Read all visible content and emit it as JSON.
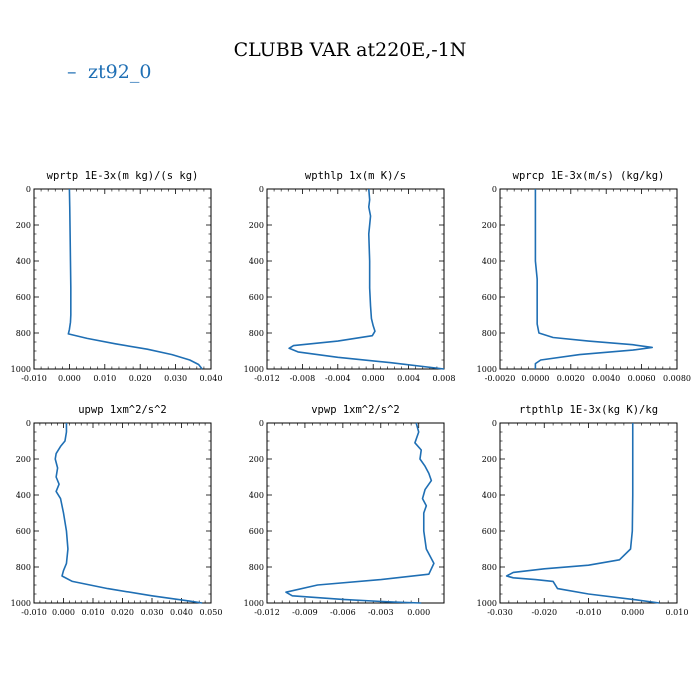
{
  "figure": {
    "title": "CLUBB VAR at220E,-1N",
    "legend": [
      {
        "name": "zt92_0",
        "color": "#1f6fb4"
      }
    ]
  },
  "chart_data": [
    {
      "type": "line",
      "title": "wprtp  1E-3x(m kg)/(s kg)",
      "xlim": [
        -0.01,
        0.04
      ],
      "ylim": [
        1000,
        0
      ],
      "xticks": [
        "-0.010",
        "0.000",
        "0.010",
        "0.020",
        "0.030",
        "0.040"
      ],
      "yticks": [
        "0",
        "200",
        "400",
        "600",
        "800",
        "1000"
      ],
      "series": [
        {
          "name": "zt92_0",
          "color": "#1f6fb4",
          "x": [
            0.0,
            0.0001,
            0.0002,
            0.0003,
            0.0004,
            0.0004,
            0.0004,
            0.0003,
            0.0,
            -0.0003,
            0.005,
            0.013,
            0.022,
            0.029,
            0.034,
            0.0365,
            0.0375
          ],
          "y": [
            0,
            100,
            250,
            400,
            550,
            650,
            700,
            740,
            780,
            805,
            830,
            860,
            890,
            920,
            950,
            975,
            1000
          ]
        }
      ]
    },
    {
      "type": "line",
      "title": "wpthlp  1x(m K)/s",
      "xlim": [
        -0.012,
        0.008
      ],
      "ylim": [
        1000,
        0
      ],
      "xticks": [
        "-0.012",
        "-0.008",
        "-0.004",
        "0.000",
        "0.004",
        "0.008"
      ],
      "yticks": [
        "0",
        "200",
        "400",
        "600",
        "800",
        "1000"
      ],
      "series": [
        {
          "name": "zt92_0",
          "color": "#1f6fb4",
          "x": [
            -0.0005,
            -0.0004,
            -0.0005,
            -0.0003,
            -0.0005,
            -0.0004,
            -0.0004,
            -0.0003,
            -0.0002,
            0.0,
            0.0002,
            -0.0001,
            -0.004,
            -0.009,
            -0.0095,
            -0.0085,
            -0.004,
            0.002,
            0.008
          ],
          "y": [
            0,
            60,
            100,
            150,
            250,
            400,
            550,
            650,
            720,
            760,
            790,
            815,
            845,
            870,
            885,
            905,
            935,
            965,
            1000
          ]
        }
      ]
    },
    {
      "type": "line",
      "title": "wprcp  1E-3x(m/s) (kg/kg)",
      "xlim": [
        -0.002,
        0.008
      ],
      "ylim": [
        1000,
        0
      ],
      "xticks": [
        "-0.0020",
        "0.0000",
        "0.0020",
        "0.0040",
        "0.0060",
        "0.0080"
      ],
      "yticks": [
        "0",
        "200",
        "400",
        "600",
        "800",
        "1000"
      ],
      "series": [
        {
          "name": "zt92_0",
          "color": "#1f6fb4",
          "x": [
            0.0,
            0.0,
            0.0,
            0.0001,
            0.0001,
            0.0001,
            0.0001,
            0.0002,
            0.001,
            0.003,
            0.0055,
            0.0066,
            0.0055,
            0.0025,
            0.0003,
            0.0,
            0.0
          ],
          "y": [
            0,
            200,
            400,
            500,
            550,
            650,
            750,
            800,
            825,
            845,
            865,
            880,
            895,
            920,
            950,
            970,
            1000
          ]
        }
      ]
    },
    {
      "type": "line",
      "title": "upwp  1xm^2/s^2",
      "xlim": [
        -0.01,
        0.05
      ],
      "ylim": [
        1000,
        0
      ],
      "xticks": [
        "-0.010",
        "0.000",
        "0.010",
        "0.020",
        "0.030",
        "0.040",
        "0.050"
      ],
      "yticks": [
        "0",
        "200",
        "400",
        "600",
        "800",
        "1000"
      ],
      "series": [
        {
          "name": "zt92_0",
          "color": "#1f6fb4",
          "x": [
            0.001,
            0.001,
            0.0005,
            -0.001,
            -0.0025,
            -0.0028,
            -0.002,
            -0.0025,
            -0.0015,
            -0.0025,
            -0.001,
            0.0,
            0.001,
            0.0015,
            0.001,
            0.0,
            -0.0005,
            0.003,
            0.015,
            0.03,
            0.043,
            0.047
          ],
          "y": [
            0,
            50,
            100,
            130,
            170,
            200,
            250,
            300,
            340,
            380,
            420,
            500,
            600,
            700,
            780,
            820,
            850,
            880,
            920,
            960,
            990,
            1000
          ]
        }
      ]
    },
    {
      "type": "line",
      "title": "vpwp  1xm^2/s^2",
      "xlim": [
        -0.012,
        0.002
      ],
      "ylim": [
        1000,
        0
      ],
      "xticks": [
        "-0.012",
        "-0.009",
        "-0.006",
        "-0.003",
        "0.000"
      ],
      "yticks": [
        "0",
        "200",
        "400",
        "600",
        "800",
        "1000"
      ],
      "series": [
        {
          "name": "zt92_0",
          "color": "#1f6fb4",
          "x": [
            -0.0002,
            0.0,
            -0.0003,
            0.0002,
            0.0001,
            0.0005,
            0.0008,
            0.001,
            0.0005,
            0.0003,
            0.0006,
            0.0004,
            0.0004,
            0.0006,
            0.0012,
            0.0008,
            -0.003,
            -0.008,
            -0.0105,
            -0.01,
            -0.006,
            -0.002,
            0.0002
          ],
          "y": [
            0,
            50,
            110,
            150,
            200,
            240,
            280,
            320,
            370,
            420,
            460,
            500,
            600,
            700,
            780,
            840,
            870,
            900,
            940,
            960,
            980,
            995,
            1000
          ]
        }
      ]
    },
    {
      "type": "line",
      "title": "rtpthlp  1E-3x(kg K)/kg",
      "xlim": [
        -0.03,
        0.01
      ],
      "ylim": [
        1000,
        0
      ],
      "xticks": [
        "-0.030",
        "-0.020",
        "-0.010",
        "0.000",
        "0.010"
      ],
      "yticks": [
        "0",
        "200",
        "400",
        "600",
        "800",
        "1000"
      ],
      "series": [
        {
          "name": "zt92_0",
          "color": "#1f6fb4",
          "x": [
            0.0,
            0.0,
            0.0,
            -0.0001,
            -0.0005,
            -0.003,
            -0.01,
            -0.02,
            -0.027,
            -0.0285,
            -0.027,
            -0.022,
            -0.018,
            -0.017,
            -0.01,
            0.0,
            0.006
          ],
          "y": [
            0,
            200,
            400,
            600,
            700,
            760,
            790,
            810,
            830,
            850,
            860,
            870,
            880,
            920,
            950,
            980,
            1000
          ]
        }
      ]
    }
  ]
}
